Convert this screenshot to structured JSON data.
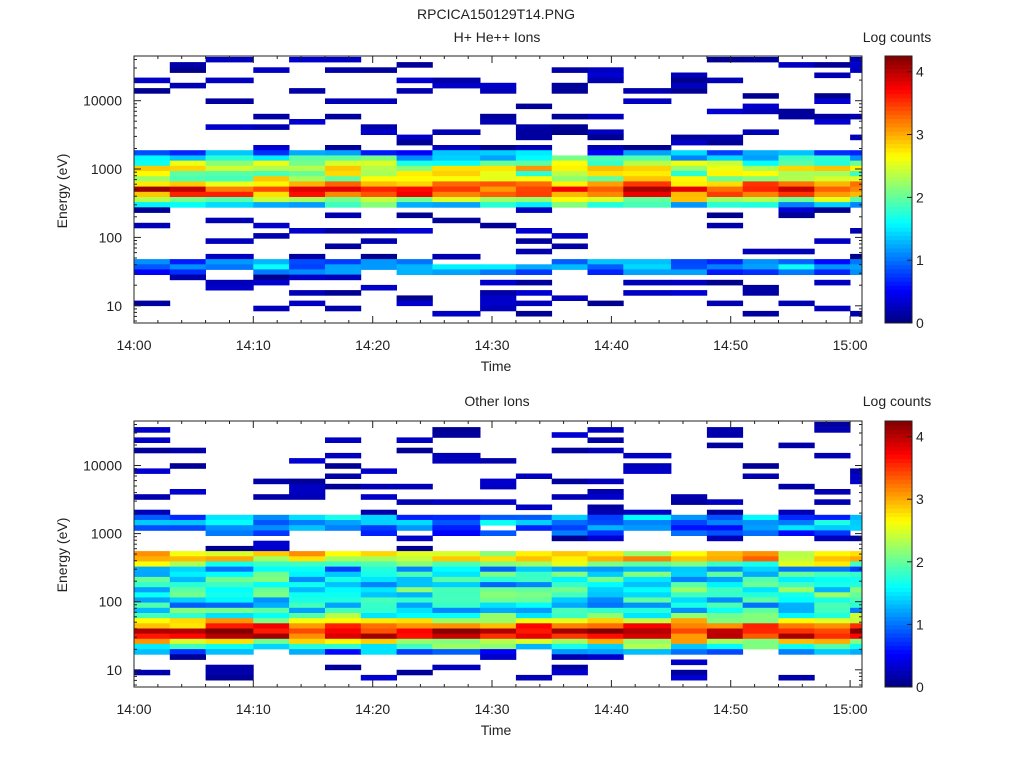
{
  "page_title": "RPCICA150129T14.PNG",
  "chart_data": [
    {
      "type": "heatmap",
      "title": "H+ He++ Ions",
      "xlabel": "Time",
      "ylabel": "Energy (eV)",
      "x_ticks": [
        "14:00",
        "14:10",
        "14:20",
        "14:30",
        "14:40",
        "14:50",
        "15:00"
      ],
      "x_range": [
        "14:00",
        "15:01"
      ],
      "y_scale": "log",
      "y_ticks": [
        10,
        100,
        1000,
        10000
      ],
      "y_tick_labels": [
        "10",
        "100",
        "1000",
        "10000"
      ],
      "y_range": [
        5.6,
        45000
      ],
      "colorbar": {
        "label": "Log counts",
        "range": [
          0,
          4.25
        ],
        "ticks": [
          0,
          1,
          2,
          3,
          4
        ],
        "tick_labels": [
          "0",
          "1",
          "2",
          "3",
          "4"
        ]
      },
      "times": [
        "14:00",
        "14:03",
        "14:06",
        "14:10",
        "14:13",
        "14:16",
        "14:19",
        "14:22",
        "14:25",
        "14:29",
        "14:32",
        "14:35",
        "14:38",
        "14:41",
        "14:45",
        "14:48",
        "14:51",
        "14:54",
        "14:57",
        "15:00"
      ],
      "energies": [
        40000,
        33600,
        28200,
        23700,
        19900,
        16700,
        14000,
        11800,
        9900,
        8300,
        7000,
        5880,
        4930,
        4140,
        3480,
        2920,
        2450,
        2060,
        1730,
        1450,
        1220,
        1020,
        860,
        720,
        605,
        508,
        426,
        358,
        301,
        253,
        212,
        178,
        150,
        126,
        106,
        88.8,
        74.6,
        62.6,
        52.6,
        44.2,
        37.1,
        31.2,
        26.2,
        22,
        18.5,
        15.5,
        13,
        10.9,
        9.2,
        7.7
      ],
      "profile": [
        0,
        0,
        0,
        0,
        0,
        0,
        0,
        0,
        0,
        0,
        0,
        0,
        0,
        0,
        0,
        0,
        0,
        0,
        1,
        1.6,
        2.1,
        2.6,
        2.3,
        2.4,
        3.1,
        3.6,
        3.3,
        2.4,
        1.6,
        0,
        0,
        0,
        0,
        0,
        0,
        0,
        0,
        0,
        0,
        0.9,
        1.1,
        0.9,
        0,
        0,
        0,
        0,
        0,
        0,
        0,
        0
      ],
      "seed": 7
    },
    {
      "type": "heatmap",
      "title": "Other Ions",
      "xlabel": "Time",
      "ylabel": "Energy (eV)",
      "x_ticks": [
        "14:00",
        "14:10",
        "14:20",
        "14:30",
        "14:40",
        "14:50",
        "15:00"
      ],
      "x_range": [
        "14:00",
        "15:01"
      ],
      "y_scale": "log",
      "y_ticks": [
        10,
        100,
        1000,
        10000
      ],
      "y_tick_labels": [
        "10",
        "100",
        "1000",
        "10000"
      ],
      "y_range": [
        5.6,
        45000
      ],
      "colorbar": {
        "label": "Log counts",
        "range": [
          0,
          4.25
        ],
        "ticks": [
          0,
          1,
          2,
          3,
          4
        ],
        "tick_labels": [
          "0",
          "1",
          "2",
          "3",
          "4"
        ]
      },
      "times": [
        "14:00",
        "14:03",
        "14:06",
        "14:10",
        "14:13",
        "14:16",
        "14:19",
        "14:22",
        "14:25",
        "14:29",
        "14:32",
        "14:35",
        "14:38",
        "14:41",
        "14:45",
        "14:48",
        "14:51",
        "14:54",
        "14:57",
        "15:00"
      ],
      "energies": [
        40000,
        33600,
        28200,
        23700,
        19900,
        16700,
        14000,
        11800,
        9900,
        8300,
        7000,
        5880,
        4930,
        4140,
        3480,
        2920,
        2450,
        2060,
        1730,
        1450,
        1220,
        1020,
        860,
        720,
        605,
        508,
        426,
        358,
        301,
        253,
        212,
        178,
        150,
        126,
        106,
        88.8,
        74.6,
        62.6,
        52.6,
        44.2,
        37.1,
        31.2,
        26.2,
        22,
        18.5,
        15.5,
        13,
        10.9,
        9.2,
        7.7
      ],
      "profile": [
        0,
        0,
        0,
        0,
        0,
        0,
        0,
        0,
        0,
        0,
        0,
        0,
        0,
        0,
        0,
        0,
        0,
        0,
        1.2,
        1.2,
        1,
        0.6,
        0,
        0,
        0,
        2.6,
        2.8,
        2.2,
        1.2,
        1.6,
        1.6,
        1.5,
        1.7,
        1.8,
        1.6,
        1.4,
        1.6,
        2,
        2.6,
        3.3,
        3.9,
        3.6,
        2.6,
        1.8,
        1,
        0,
        0,
        0,
        0,
        0
      ],
      "seed": 19
    }
  ]
}
